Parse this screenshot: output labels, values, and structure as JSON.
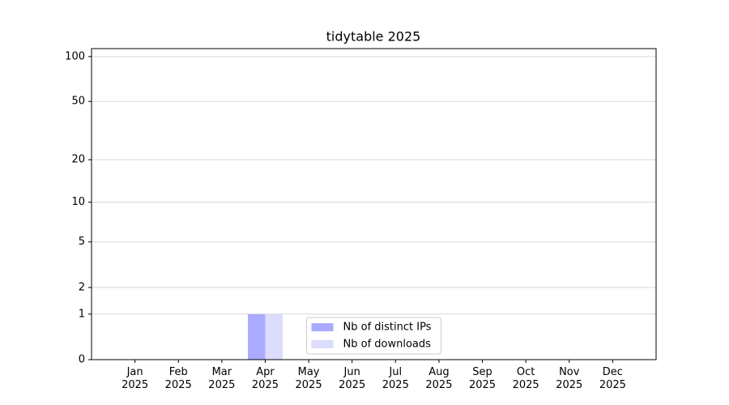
{
  "chart_data": {
    "type": "bar",
    "title": "tidytable 2025",
    "categories": [
      "Jan\n2025",
      "Feb\n2025",
      "Mar\n2025",
      "Apr\n2025",
      "May\n2025",
      "Jun\n2025",
      "Jul\n2025",
      "Aug\n2025",
      "Sep\n2025",
      "Oct\n2025",
      "Nov\n2025",
      "Dec\n2025"
    ],
    "series": [
      {
        "name": "Nb of distinct IPs",
        "color": "#aaaaff",
        "values": [
          0,
          0,
          0,
          1,
          0,
          0,
          0,
          0,
          0,
          0,
          0,
          0
        ]
      },
      {
        "name": "Nb of downloads",
        "color": "#dcdcfc",
        "values": [
          0,
          0,
          0,
          1,
          0,
          0,
          0,
          0,
          0,
          0,
          0,
          0
        ]
      }
    ],
    "y_scale": "log1p",
    "ylim": [
      0,
      113
    ],
    "yticks": [
      0,
      1,
      2,
      5,
      10,
      20,
      50,
      100
    ],
    "grid": true,
    "legend": "lower center"
  }
}
